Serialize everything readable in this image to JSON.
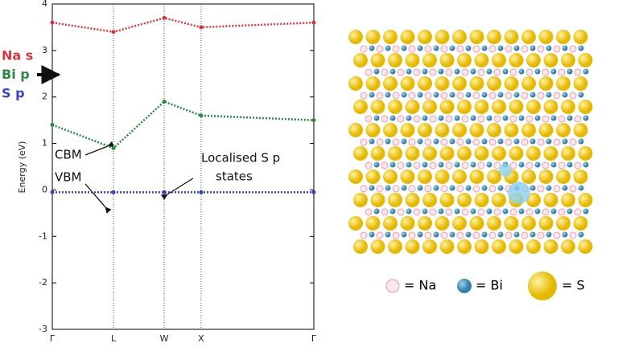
{
  "chart_data": {
    "type": "line",
    "y_label": "Energy (eV)",
    "categories": [
      "Γ",
      "L",
      "W",
      "X",
      "Γ"
    ],
    "series": [
      {
        "name": "Na s",
        "color": "#d8353c",
        "values": [
          3.6,
          3.4,
          3.7,
          3.5,
          3.6
        ]
      },
      {
        "name": "Bi p",
        "color": "#2a8a45",
        "values": [
          1.4,
          0.9,
          1.9,
          1.6,
          1.5
        ]
      },
      {
        "name": "S p",
        "color": "#3444c2",
        "values": [
          -0.05,
          -0.05,
          -0.05,
          -0.05,
          -0.05
        ]
      }
    ],
    "ylim": [
      -3,
      4
    ],
    "yticks": [
      -3,
      -2,
      -1,
      0,
      1,
      2,
      3,
      4
    ],
    "annotations": [
      "CBM",
      "VBM",
      "Localised S p",
      "states"
    ],
    "structure_legend": [
      "= Na",
      "= Bi",
      "= S"
    ]
  }
}
